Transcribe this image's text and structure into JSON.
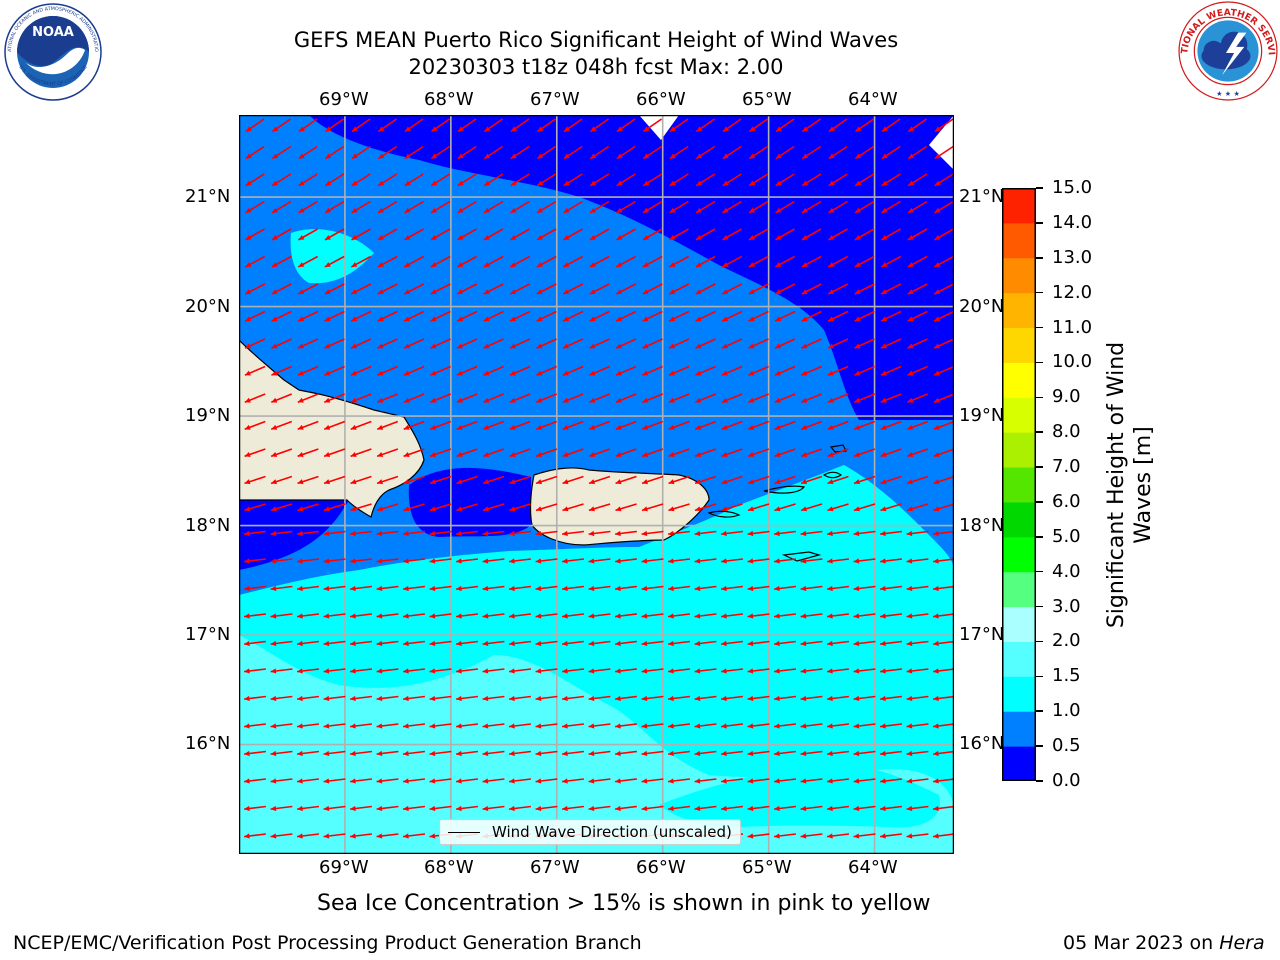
{
  "header": {
    "title_line1": "GEFS MEAN Puerto Rico Significant Height of Wind Waves",
    "title_line2": "20230303 t18z 048h fcst   Max: 2.00"
  },
  "logos": {
    "left": {
      "name": "NOAA",
      "ring_text": "NATIONAL OCEANIC AND ATMOSPHERIC ADMINISTRATION",
      "bottom_text": "U.S. DEPARTMENT OF COMMERCE"
    },
    "right": {
      "ring_text": "NATIONAL WEATHER SERVICE"
    }
  },
  "map": {
    "lon_labels": [
      "69°W",
      "68°W",
      "67°W",
      "66°W",
      "65°W",
      "64°W"
    ],
    "lat_labels": [
      "21°N",
      "20°N",
      "19°N",
      "18°N",
      "17°N",
      "16°N"
    ],
    "lon_range": [
      -70,
      -63.25
    ],
    "lat_range": [
      15,
      21.75
    ],
    "wind_dir_deg": 262,
    "arrow_color": "#ff0000",
    "land_color": "#eeecd9",
    "legend_label": "Wind Wave Direction (unscaled)"
  },
  "colorbar": {
    "label": "Significant Height of Wind Waves [m]",
    "ticks": [
      "0.0",
      "0.5",
      "1.0",
      "1.5",
      "2.0",
      "3.0",
      "4.0",
      "5.0",
      "6.0",
      "7.0",
      "8.0",
      "9.0",
      "10.0",
      "11.0",
      "12.0",
      "13.0",
      "14.0",
      "15.0"
    ],
    "colors": [
      "#0000ff",
      "#0080ff",
      "#00ffff",
      "#55ffff",
      "#aaffff",
      "#55ff80",
      "#00ff00",
      "#00d800",
      "#55e600",
      "#aaf000",
      "#d8ff00",
      "#ffff00",
      "#ffd700",
      "#ffb400",
      "#ff8c00",
      "#ff5a00",
      "#ff2200"
    ]
  },
  "note": "Sea Ice Concentration > 15% is shown in pink to yellow",
  "footer": {
    "left": "NCEP/EMC/Verification Post Processing Product Generation Branch",
    "right_date": "05 Mar 2023 on ",
    "right_host": "Hera"
  }
}
